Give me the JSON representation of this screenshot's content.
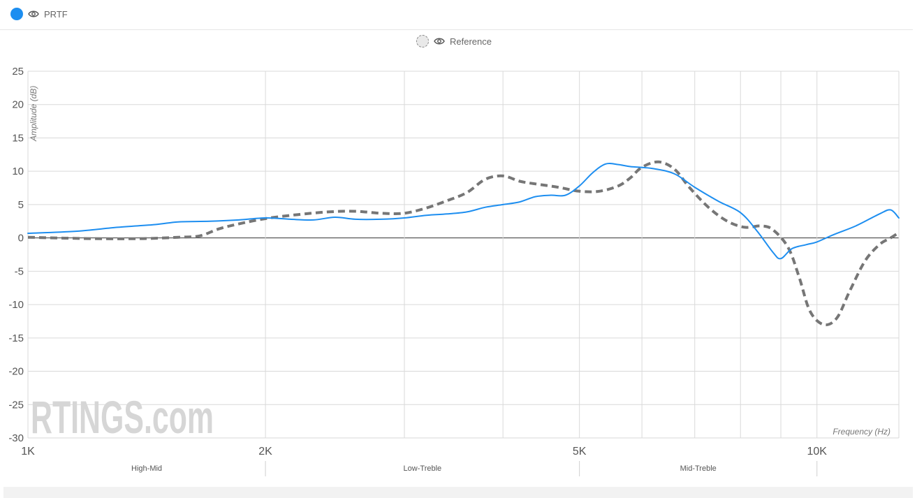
{
  "legend": {
    "prtf_label": "PRTF",
    "reference_label": "Reference",
    "prtf_color": "#1d8ef0",
    "reference_color": "#767676"
  },
  "chart_data": {
    "type": "line",
    "xscale": "log",
    "ylabel": "Amplitude (dB)",
    "xlabel": "Frequency (Hz)",
    "xlim": [
      1000,
      12700
    ],
    "ylim": [
      -30,
      25
    ],
    "yticks": [
      25,
      20,
      15,
      10,
      5,
      0,
      -5,
      -10,
      -15,
      -20,
      -25,
      -30
    ],
    "xtick_labels": [
      {
        "value": 1000,
        "label": "1K"
      },
      {
        "value": 2000,
        "label": "2K"
      },
      {
        "value": 5000,
        "label": "5K"
      },
      {
        "value": 10000,
        "label": "10K"
      }
    ],
    "x_gridlines": [
      2000,
      3000,
      4000,
      5000,
      6000,
      7000,
      8000,
      9000,
      10000
    ],
    "bands": [
      {
        "label": "High-Mid",
        "from": 1000,
        "to": 2000
      },
      {
        "label": "Low-Treble",
        "from": 2000,
        "to": 5000
      },
      {
        "label": "Mid-Treble",
        "from": 5000,
        "to": 10000
      }
    ],
    "watermark": "RTINGS.com",
    "series": [
      {
        "name": "PRTF",
        "color": "#1d8ef0",
        "dashed": false,
        "points": [
          [
            1000,
            0.7
          ],
          [
            1150,
            1.0
          ],
          [
            1300,
            1.6
          ],
          [
            1450,
            2.0
          ],
          [
            1550,
            2.4
          ],
          [
            1700,
            2.5
          ],
          [
            1850,
            2.7
          ],
          [
            2000,
            3.0
          ],
          [
            2150,
            2.8
          ],
          [
            2300,
            2.7
          ],
          [
            2450,
            3.1
          ],
          [
            2600,
            2.8
          ],
          [
            2800,
            2.8
          ],
          [
            3000,
            3.0
          ],
          [
            3200,
            3.4
          ],
          [
            3400,
            3.6
          ],
          [
            3600,
            3.9
          ],
          [
            3800,
            4.6
          ],
          [
            4000,
            5.0
          ],
          [
            4200,
            5.4
          ],
          [
            4400,
            6.2
          ],
          [
            4600,
            6.4
          ],
          [
            4800,
            6.4
          ],
          [
            5000,
            7.8
          ],
          [
            5200,
            9.8
          ],
          [
            5400,
            11.1
          ],
          [
            5600,
            11.0
          ],
          [
            5800,
            10.7
          ],
          [
            6200,
            10.4
          ],
          [
            6600,
            9.6
          ],
          [
            7000,
            7.6
          ],
          [
            7500,
            5.5
          ],
          [
            8000,
            3.8
          ],
          [
            8400,
            1.0
          ],
          [
            8800,
            -2.2
          ],
          [
            9000,
            -3.1
          ],
          [
            9300,
            -1.6
          ],
          [
            9700,
            -1.0
          ],
          [
            10000,
            -0.6
          ],
          [
            10500,
            0.5
          ],
          [
            11200,
            1.8
          ],
          [
            12000,
            3.6
          ],
          [
            12400,
            4.2
          ],
          [
            12700,
            3.0
          ]
        ]
      },
      {
        "name": "Reference",
        "color": "#767676",
        "dashed": true,
        "points": [
          [
            1000,
            0.1
          ],
          [
            1200,
            -0.1
          ],
          [
            1400,
            -0.1
          ],
          [
            1550,
            0.1
          ],
          [
            1650,
            0.3
          ],
          [
            1750,
            1.4
          ],
          [
            1850,
            2.1
          ],
          [
            2000,
            2.9
          ],
          [
            2200,
            3.5
          ],
          [
            2400,
            3.9
          ],
          [
            2600,
            4.0
          ],
          [
            2800,
            3.7
          ],
          [
            3000,
            3.7
          ],
          [
            3200,
            4.5
          ],
          [
            3400,
            5.6
          ],
          [
            3600,
            6.8
          ],
          [
            3800,
            8.8
          ],
          [
            4000,
            9.3
          ],
          [
            4200,
            8.5
          ],
          [
            4400,
            8.1
          ],
          [
            4700,
            7.6
          ],
          [
            5000,
            7.0
          ],
          [
            5300,
            7.0
          ],
          [
            5600,
            7.8
          ],
          [
            5800,
            9.0
          ],
          [
            6000,
            10.6
          ],
          [
            6300,
            11.4
          ],
          [
            6600,
            10.3
          ],
          [
            6900,
            7.5
          ],
          [
            7300,
            4.5
          ],
          [
            7700,
            2.5
          ],
          [
            8100,
            1.6
          ],
          [
            8500,
            1.8
          ],
          [
            8800,
            1.2
          ],
          [
            9200,
            -1.5
          ],
          [
            9500,
            -6.0
          ],
          [
            9800,
            -11.0
          ],
          [
            10200,
            -13.0
          ],
          [
            10600,
            -12.0
          ],
          [
            11000,
            -8.0
          ],
          [
            11500,
            -3.5
          ],
          [
            12000,
            -1.0
          ],
          [
            12400,
            0.0
          ],
          [
            12700,
            0.8
          ]
        ]
      }
    ]
  }
}
